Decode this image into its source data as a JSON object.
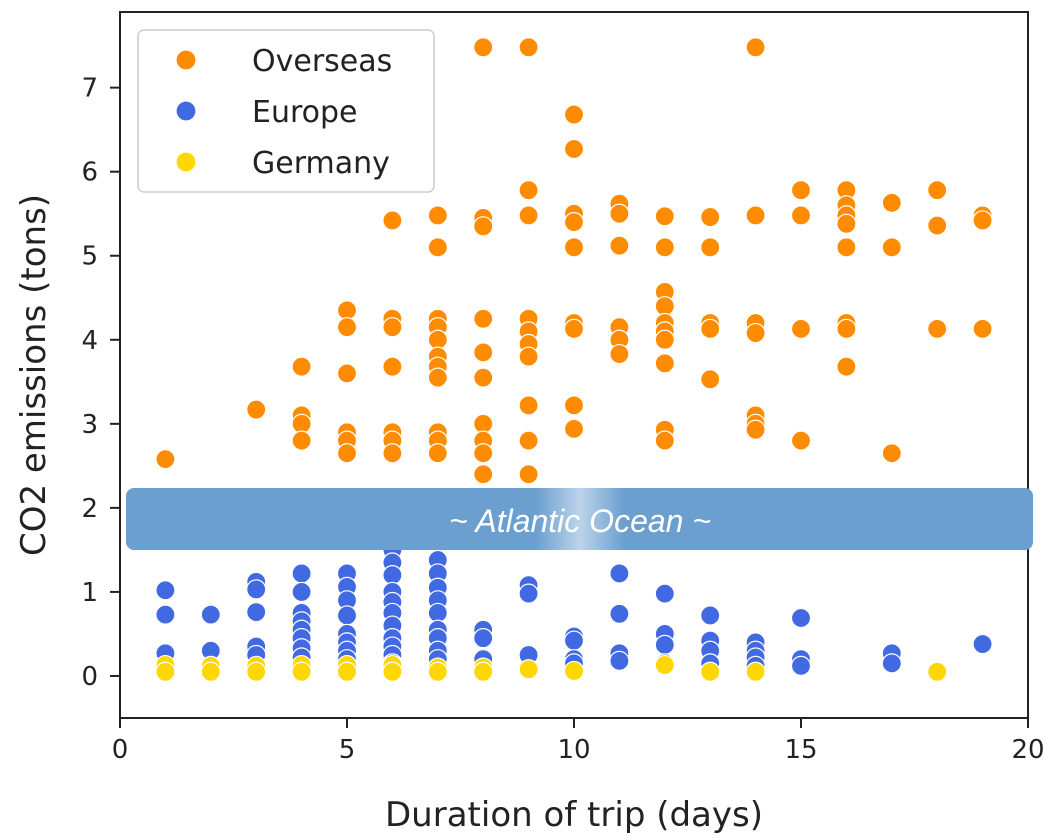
{
  "chart_data": {
    "type": "scatter",
    "xlabel": "Duration of trip (days)",
    "ylabel": "CO2 emissions (tons)",
    "xlim": [
      0,
      20
    ],
    "ylim": [
      -0.5,
      7.9
    ],
    "xticks": [
      "0",
      "5",
      "10",
      "15",
      "20"
    ],
    "yticks": [
      "0",
      "1",
      "2",
      "3",
      "4",
      "5",
      "6",
      "7"
    ],
    "grid": false,
    "legend_position": "top-left",
    "colors": {
      "Overseas": "#ff8c00",
      "Europe": "#4169e1",
      "Germany": "#ffd700",
      "banner": "#6a9fd0"
    },
    "annotation": "~ Atlantic Ocean ~",
    "series": [
      {
        "name": "Overseas",
        "points": [
          [
            1,
            2.58
          ],
          [
            3,
            3.17
          ],
          [
            4,
            3.68
          ],
          [
            4,
            3.1
          ],
          [
            4,
            3.0
          ],
          [
            4,
            2.8
          ],
          [
            5,
            4.35
          ],
          [
            5,
            4.15
          ],
          [
            5,
            3.6
          ],
          [
            5,
            2.9
          ],
          [
            5,
            2.8
          ],
          [
            5,
            2.65
          ],
          [
            6,
            5.42
          ],
          [
            6,
            4.25
          ],
          [
            6,
            4.15
          ],
          [
            6,
            3.68
          ],
          [
            6,
            2.9
          ],
          [
            6,
            2.8
          ],
          [
            6,
            2.65
          ],
          [
            7,
            5.48
          ],
          [
            7,
            5.1
          ],
          [
            7,
            4.25
          ],
          [
            7,
            4.15
          ],
          [
            7,
            4.0
          ],
          [
            7,
            3.8
          ],
          [
            7,
            3.68
          ],
          [
            7,
            3.55
          ],
          [
            7,
            2.9
          ],
          [
            7,
            2.8
          ],
          [
            7,
            2.65
          ],
          [
            8,
            7.48
          ],
          [
            8,
            5.45
          ],
          [
            8,
            5.35
          ],
          [
            8,
            4.25
          ],
          [
            8,
            3.85
          ],
          [
            8,
            3.55
          ],
          [
            8,
            3.0
          ],
          [
            8,
            2.8
          ],
          [
            8,
            2.65
          ],
          [
            8,
            2.4
          ],
          [
            9,
            7.48
          ],
          [
            9,
            5.78
          ],
          [
            9,
            5.48
          ],
          [
            9,
            4.25
          ],
          [
            9,
            4.1
          ],
          [
            9,
            3.95
          ],
          [
            9,
            3.8
          ],
          [
            9,
            3.22
          ],
          [
            9,
            2.8
          ],
          [
            9,
            2.4
          ],
          [
            10,
            6.68
          ],
          [
            10,
            6.27
          ],
          [
            10,
            5.5
          ],
          [
            10,
            5.4
          ],
          [
            10,
            5.1
          ],
          [
            10,
            4.2
          ],
          [
            10,
            4.13
          ],
          [
            10,
            3.22
          ],
          [
            10,
            2.94
          ],
          [
            11,
            5.62
          ],
          [
            11,
            5.5
          ],
          [
            11,
            5.12
          ],
          [
            11,
            4.15
          ],
          [
            11,
            4.0
          ],
          [
            11,
            3.83
          ],
          [
            12,
            5.47
          ],
          [
            12,
            5.1
          ],
          [
            12,
            4.57
          ],
          [
            12,
            4.4
          ],
          [
            12,
            4.2
          ],
          [
            12,
            4.1
          ],
          [
            12,
            4.0
          ],
          [
            12,
            3.72
          ],
          [
            12,
            2.93
          ],
          [
            12,
            2.8
          ],
          [
            13,
            5.46
          ],
          [
            13,
            5.1
          ],
          [
            13,
            4.2
          ],
          [
            13,
            4.13
          ],
          [
            13,
            3.53
          ],
          [
            14,
            7.48
          ],
          [
            14,
            5.48
          ],
          [
            14,
            4.2
          ],
          [
            14,
            4.08
          ],
          [
            14,
            3.1
          ],
          [
            14,
            3.0
          ],
          [
            14,
            2.93
          ],
          [
            15,
            5.78
          ],
          [
            15,
            5.48
          ],
          [
            15,
            4.13
          ],
          [
            15,
            2.8
          ],
          [
            16,
            5.78
          ],
          [
            16,
            5.6
          ],
          [
            16,
            5.48
          ],
          [
            16,
            5.38
          ],
          [
            16,
            5.1
          ],
          [
            16,
            4.2
          ],
          [
            16,
            4.13
          ],
          [
            16,
            3.68
          ],
          [
            17,
            5.63
          ],
          [
            17,
            5.1
          ],
          [
            17,
            2.65
          ],
          [
            18,
            5.78
          ],
          [
            18,
            5.36
          ],
          [
            18,
            4.13
          ],
          [
            19,
            5.48
          ],
          [
            19,
            5.42
          ],
          [
            19,
            4.13
          ]
        ]
      },
      {
        "name": "Europe",
        "points": [
          [
            1,
            1.02
          ],
          [
            1,
            0.73
          ],
          [
            1,
            0.27
          ],
          [
            2,
            0.73
          ],
          [
            2,
            0.3
          ],
          [
            3,
            1.12
          ],
          [
            3,
            1.03
          ],
          [
            3,
            0.76
          ],
          [
            3,
            0.35
          ],
          [
            3,
            0.25
          ],
          [
            4,
            1.22
          ],
          [
            4,
            1.0
          ],
          [
            4,
            0.75
          ],
          [
            4,
            0.65
          ],
          [
            4,
            0.55
          ],
          [
            4,
            0.45
          ],
          [
            4,
            0.33
          ],
          [
            4,
            0.22
          ],
          [
            5,
            1.22
          ],
          [
            5,
            1.06
          ],
          [
            5,
            0.9
          ],
          [
            5,
            0.72
          ],
          [
            5,
            0.5
          ],
          [
            5,
            0.4
          ],
          [
            5,
            0.3
          ],
          [
            5,
            0.2
          ],
          [
            6,
            1.5
          ],
          [
            6,
            1.35
          ],
          [
            6,
            1.2
          ],
          [
            6,
            1.0
          ],
          [
            6,
            0.88
          ],
          [
            6,
            0.75
          ],
          [
            6,
            0.6
          ],
          [
            6,
            0.45
          ],
          [
            6,
            0.35
          ],
          [
            6,
            0.25
          ],
          [
            6,
            0.15
          ],
          [
            7,
            1.38
          ],
          [
            7,
            1.22
          ],
          [
            7,
            1.05
          ],
          [
            7,
            0.9
          ],
          [
            7,
            0.75
          ],
          [
            7,
            0.55
          ],
          [
            7,
            0.45
          ],
          [
            7,
            0.3
          ],
          [
            7,
            0.2
          ],
          [
            8,
            0.55
          ],
          [
            8,
            0.45
          ],
          [
            8,
            0.2
          ],
          [
            9,
            1.08
          ],
          [
            9,
            0.98
          ],
          [
            9,
            0.25
          ],
          [
            10,
            0.47
          ],
          [
            10,
            0.42
          ],
          [
            10,
            0.2
          ],
          [
            10,
            0.15
          ],
          [
            11,
            1.22
          ],
          [
            11,
            0.74
          ],
          [
            11,
            0.27
          ],
          [
            11,
            0.18
          ],
          [
            12,
            0.98
          ],
          [
            12,
            0.5
          ],
          [
            12,
            0.37
          ],
          [
            12,
            0.15
          ],
          [
            13,
            0.72
          ],
          [
            13,
            0.42
          ],
          [
            13,
            0.3
          ],
          [
            13,
            0.15
          ],
          [
            14,
            0.4
          ],
          [
            14,
            0.3
          ],
          [
            14,
            0.22
          ],
          [
            14,
            0.12
          ],
          [
            15,
            0.69
          ],
          [
            15,
            0.2
          ],
          [
            15,
            0.12
          ],
          [
            17,
            0.27
          ],
          [
            17,
            0.15
          ],
          [
            19,
            0.38
          ]
        ]
      },
      {
        "name": "Germany",
        "points": [
          [
            1,
            0.13
          ],
          [
            1,
            0.05
          ],
          [
            2,
            0.12
          ],
          [
            2,
            0.05
          ],
          [
            3,
            0.12
          ],
          [
            3,
            0.05
          ],
          [
            4,
            0.13
          ],
          [
            4,
            0.05
          ],
          [
            5,
            0.13
          ],
          [
            5,
            0.05
          ],
          [
            6,
            0.13
          ],
          [
            6,
            0.05
          ],
          [
            7,
            0.1
          ],
          [
            7,
            0.05
          ],
          [
            8,
            0.1
          ],
          [
            8,
            0.05
          ],
          [
            9,
            0.08
          ],
          [
            10,
            0.06
          ],
          [
            12,
            0.13
          ],
          [
            13,
            0.05
          ],
          [
            14,
            0.05
          ],
          [
            18,
            0.05
          ]
        ]
      }
    ]
  }
}
